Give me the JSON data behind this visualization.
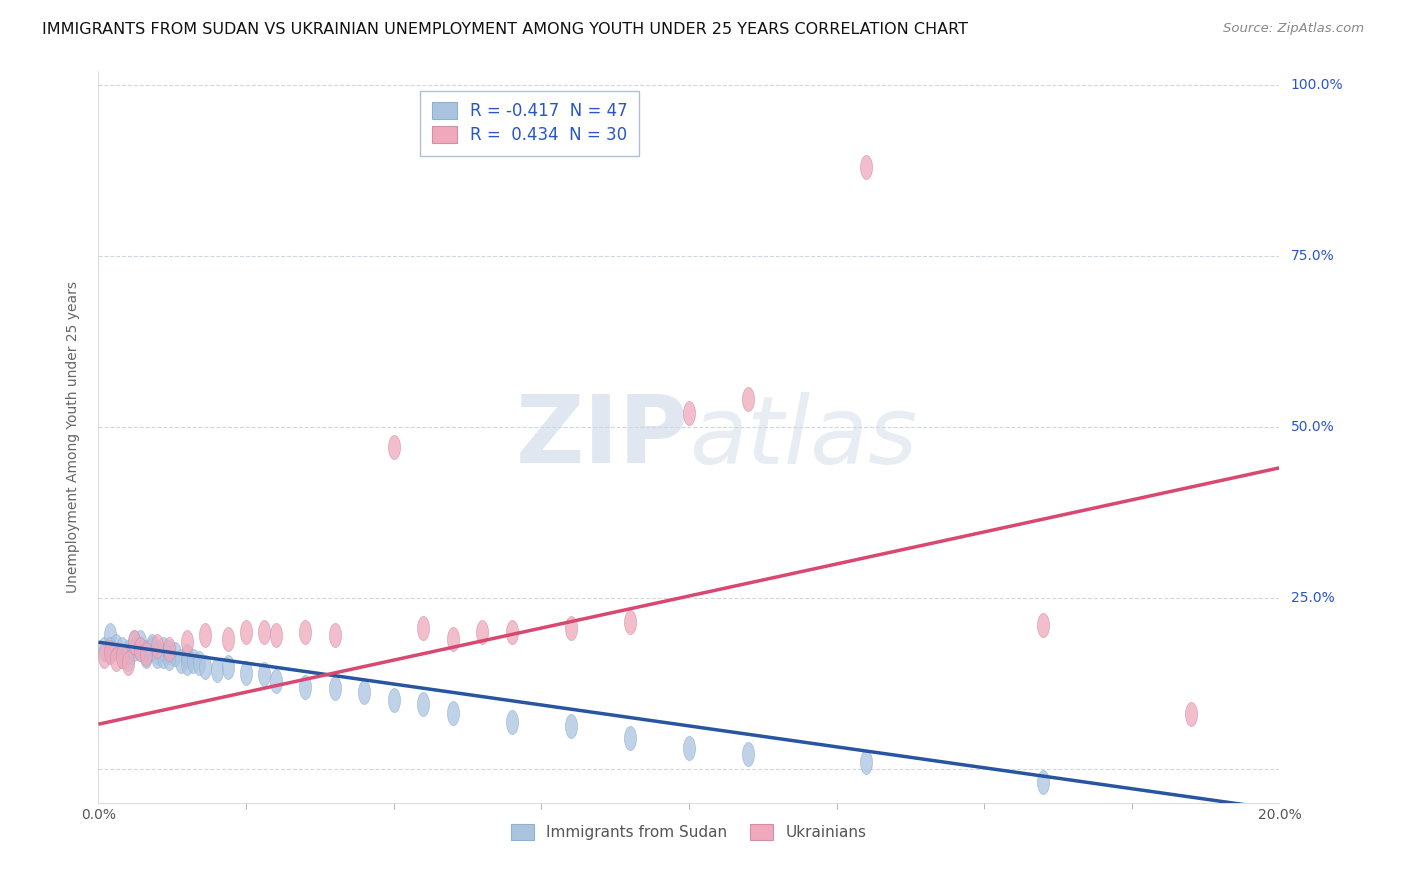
{
  "title": "IMMIGRANTS FROM SUDAN VS UKRAINIAN UNEMPLOYMENT AMONG YOUTH UNDER 25 YEARS CORRELATION CHART",
  "source": "Source: ZipAtlas.com",
  "legend_label1": "Immigrants from Sudan",
  "legend_label2": "Ukrainians",
  "legend_r1": "R = -0.417  N = 47",
  "legend_r2": "R =  0.434  N = 30",
  "ylabel_label": "Unemployment Among Youth under 25 years",
  "blue_color": "#aac4e0",
  "pink_color": "#f0a8bc",
  "blue_line_color": "#2855a0",
  "pink_line_color": "#d84870",
  "text_color_blue": "#2855c8",
  "watermark_color": "#ccd8e8",
  "blue_x": [
    0.001,
    0.002,
    0.002,
    0.003,
    0.004,
    0.004,
    0.005,
    0.005,
    0.006,
    0.006,
    0.007,
    0.007,
    0.008,
    0.008,
    0.009,
    0.009,
    0.01,
    0.01,
    0.011,
    0.011,
    0.012,
    0.012,
    0.013,
    0.014,
    0.015,
    0.015,
    0.016,
    0.017,
    0.018,
    0.02,
    0.022,
    0.025,
    0.028,
    0.03,
    0.035,
    0.04,
    0.045,
    0.05,
    0.055,
    0.06,
    0.07,
    0.08,
    0.09,
    0.1,
    0.11,
    0.13,
    0.16
  ],
  "blue_y": [
    0.175,
    0.195,
    0.175,
    0.18,
    0.165,
    0.175,
    0.17,
    0.16,
    0.175,
    0.185,
    0.175,
    0.185,
    0.17,
    0.165,
    0.18,
    0.175,
    0.17,
    0.165,
    0.175,
    0.165,
    0.17,
    0.162,
    0.168,
    0.158,
    0.165,
    0.155,
    0.158,
    0.155,
    0.148,
    0.145,
    0.148,
    0.14,
    0.138,
    0.128,
    0.12,
    0.118,
    0.112,
    0.1,
    0.095,
    0.082,
    0.068,
    0.062,
    0.045,
    0.03,
    0.022,
    0.01,
    -0.02
  ],
  "pink_x": [
    0.001,
    0.002,
    0.003,
    0.004,
    0.005,
    0.006,
    0.007,
    0.008,
    0.01,
    0.012,
    0.015,
    0.018,
    0.022,
    0.025,
    0.028,
    0.03,
    0.035,
    0.04,
    0.05,
    0.055,
    0.06,
    0.065,
    0.07,
    0.08,
    0.09,
    0.1,
    0.11,
    0.13,
    0.16,
    0.185
  ],
  "pink_y": [
    0.165,
    0.17,
    0.16,
    0.165,
    0.155,
    0.185,
    0.175,
    0.168,
    0.18,
    0.175,
    0.185,
    0.195,
    0.19,
    0.2,
    0.2,
    0.195,
    0.2,
    0.195,
    0.47,
    0.205,
    0.19,
    0.2,
    0.2,
    0.205,
    0.215,
    0.52,
    0.54,
    0.88,
    0.21,
    0.08
  ],
  "blue_trend_x": [
    0.0,
    0.2
  ],
  "blue_trend_y": [
    0.185,
    -0.06
  ],
  "pink_trend_x": [
    0.0,
    0.2
  ],
  "pink_trend_y": [
    0.065,
    0.44
  ],
  "xmin": 0.0,
  "xmax": 0.2,
  "ymin": -0.05,
  "ymax": 1.02,
  "yticks": [
    0.0,
    0.25,
    0.5,
    0.75,
    1.0
  ],
  "ytick_labels": [
    "",
    "25.0%",
    "50.0%",
    "75.0%",
    "100.0%"
  ],
  "grid_color": "#c8d4e0",
  "background_color": "#ffffff",
  "title_fontsize": 11.5,
  "source_fontsize": 9.5
}
